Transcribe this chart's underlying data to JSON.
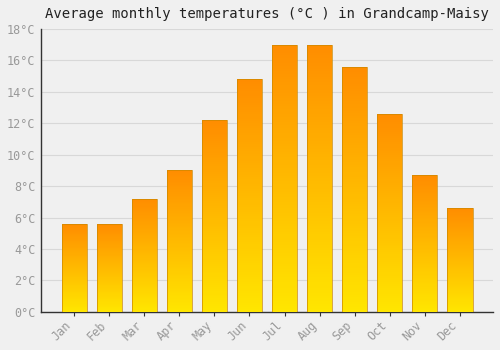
{
  "months": [
    "Jan",
    "Feb",
    "Mar",
    "Apr",
    "May",
    "Jun",
    "Jul",
    "Aug",
    "Sep",
    "Oct",
    "Nov",
    "Dec"
  ],
  "values": [
    5.6,
    5.6,
    7.2,
    9.0,
    12.2,
    14.8,
    17.0,
    17.0,
    15.6,
    12.6,
    8.7,
    6.6
  ],
  "bar_color": "#FFA500",
  "bar_edge_color": "#CC8800",
  "title": "Average monthly temperatures (°C ) in Grandcamp-Maisy",
  "ylim": [
    0,
    18
  ],
  "yticks": [
    0,
    2,
    4,
    6,
    8,
    10,
    12,
    14,
    16,
    18
  ],
  "ytick_labels": [
    "0°C",
    "2°C",
    "4°C",
    "6°C",
    "8°C",
    "10°C",
    "12°C",
    "14°C",
    "16°C",
    "18°C"
  ],
  "background_color": "#f0f0f0",
  "grid_color": "#d8d8d8",
  "title_fontsize": 10,
  "tick_fontsize": 8.5,
  "font_family": "monospace",
  "tick_color": "#999999",
  "spine_color": "#333333"
}
